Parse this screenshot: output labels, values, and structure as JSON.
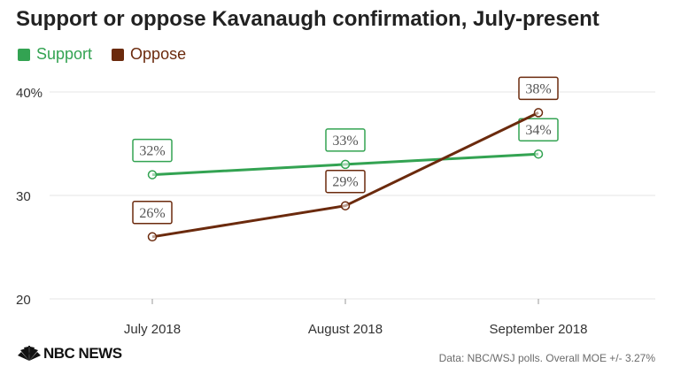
{
  "chart_data": {
    "type": "line",
    "title": "Support or oppose Kavanaugh confirmation, July-present",
    "categories": [
      "July 2018",
      "August 2018",
      "September 2018"
    ],
    "series": [
      {
        "name": "Support",
        "values": [
          32,
          33,
          34
        ],
        "labels": [
          "32%",
          "33%",
          "34%"
        ],
        "color": "#33a352"
      },
      {
        "name": "Oppose",
        "values": [
          26,
          29,
          38
        ],
        "labels": [
          "26%",
          "29%",
          "38%"
        ],
        "color": "#6b2a0d"
      }
    ],
    "ylim": [
      20,
      40
    ],
    "yticks": [
      20,
      30,
      40
    ],
    "ytick_labels": [
      "20",
      "30",
      "40%"
    ],
    "grid": true,
    "legend": "top-left",
    "xlabel": "",
    "ylabel": ""
  },
  "footer": {
    "logo": "NBC NEWS",
    "source": "Data: NBC/WSJ polls. Overall MOE +/- 3.27%"
  }
}
